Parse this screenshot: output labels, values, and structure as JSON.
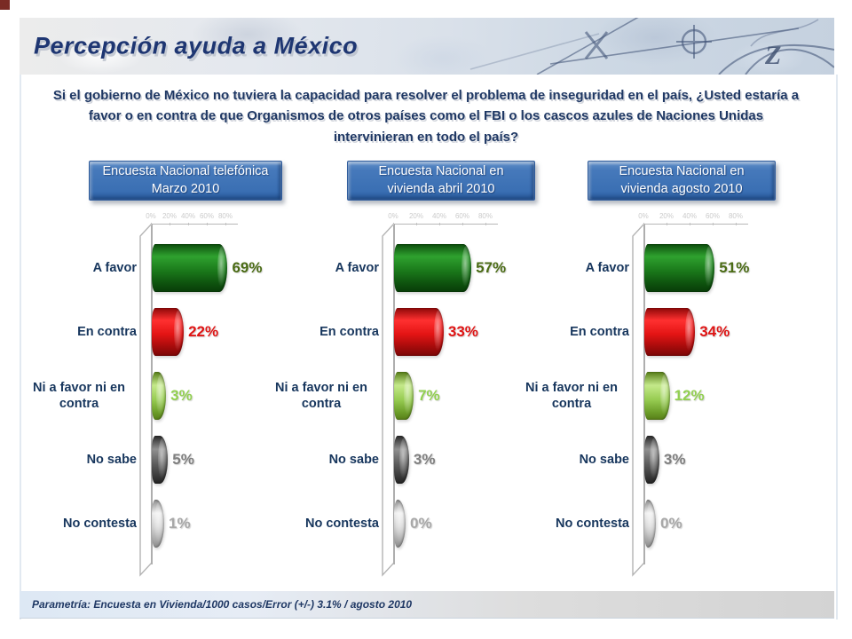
{
  "slide": {
    "title": "Percepción ayuda a México",
    "question": "Si el gobierno de México no tuviera la capacidad para resolver el problema de inseguridad en el país, ¿Usted estaría a favor o en contra de que Organismos de otros países como el FBI o los cascos azules de Naciones Unidas intervinieran en todo el país?",
    "footer": "Parametría: Encuesta en Vivienda/1000 casos/Error (+/-) 3.1% / agosto 2010"
  },
  "colors": {
    "title_text": "#1e3672",
    "question_text": "#1f3864",
    "header_button_blue": "#3a6fb3",
    "bar_a_favor_green": "#1b7a1b",
    "bar_en_contra_red": "#e31414",
    "bar_ni_favor_light_green": "#97cc52",
    "bar_no_sabe_dark_gray": "#5e5e5e",
    "bar_no_contesta_light_gray": "#d2d2d2",
    "value_label_green": "#4a6b14",
    "value_label_red": "#e01414",
    "value_label_light_green": "#92d050",
    "value_label_gray": "#7f7f7f",
    "value_label_light_gray": "#a8a8a8",
    "category_text_navy": "#17365d"
  },
  "chart_data": [
    {
      "type": "bar",
      "orientation": "horizontal",
      "title": "Encuesta Nacional telefónica Marzo 2010",
      "categories": [
        "A favor",
        "En contra",
        "Ni a favor ni en contra",
        "No sabe",
        "No contesta"
      ],
      "values": [
        69,
        22,
        3,
        5,
        1
      ],
      "unit": "%",
      "xlim": [
        0,
        80
      ],
      "ticks": [
        "0%",
        "20%",
        "40%",
        "60%",
        "80%"
      ],
      "grid": false,
      "legend": "none"
    },
    {
      "type": "bar",
      "orientation": "horizontal",
      "title": "Encuesta Nacional en vivienda abril 2010",
      "categories": [
        "A favor",
        "En contra",
        "Ni a favor ni en contra",
        "No sabe",
        "No contesta"
      ],
      "values": [
        57,
        33,
        7,
        3,
        0
      ],
      "unit": "%",
      "xlim": [
        0,
        80
      ],
      "ticks": [
        "0%",
        "20%",
        "40%",
        "60%",
        "80%"
      ],
      "grid": false,
      "legend": "none"
    },
    {
      "type": "bar",
      "orientation": "horizontal",
      "title": "Encuesta Nacional en vivienda agosto 2010",
      "categories": [
        "A favor",
        "En contra",
        "Ni a favor ni en contra",
        "No sabe",
        "No contesta"
      ],
      "values": [
        51,
        34,
        12,
        3,
        0
      ],
      "unit": "%",
      "xlim": [
        0,
        80
      ],
      "ticks": [
        "0%",
        "20%",
        "40%",
        "60%",
        "80%"
      ],
      "grid": false,
      "legend": "none"
    }
  ]
}
